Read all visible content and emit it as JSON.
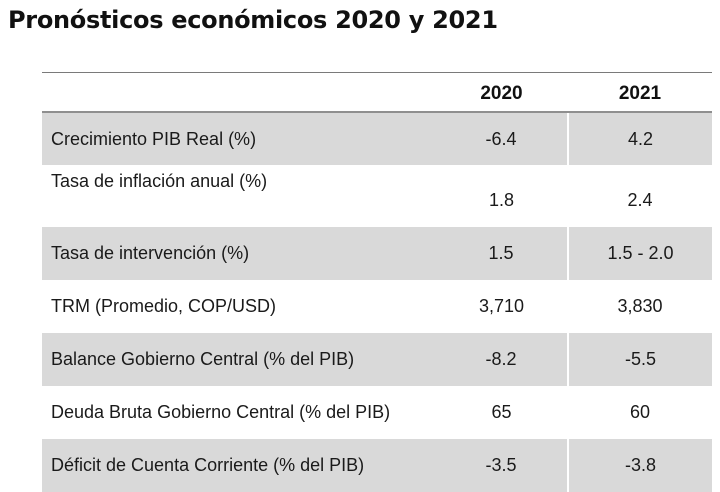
{
  "title": "Pronósticos económicos 2020 y 2021",
  "table": {
    "header": {
      "label": "",
      "col_2020": "2020",
      "col_2021": "2021"
    },
    "rows": [
      {
        "label": "Crecimiento PIB Real (%)",
        "v2020": "-6.4",
        "v2021": "4.2"
      },
      {
        "label": "Tasa de inflación anual (%)",
        "v2020": "1.8",
        "v2021": "2.4"
      },
      {
        "label": "Tasa de intervención (%)",
        "v2020": "1.5",
        "v2021": "1.5 - 2.0"
      },
      {
        "label": "TRM (Promedio, COP/USD)",
        "v2020": "3,710",
        "v2021": "3,830"
      },
      {
        "label": "Balance Gobierno Central (% del PIB)",
        "v2020": "-8.2",
        "v2021": "-5.5"
      },
      {
        "label": "Deuda Bruta Gobierno Central (% del PIB)",
        "v2020": "65",
        "v2021": "60"
      },
      {
        "label": "Déficit de Cuenta Corriente (% del PIB)",
        "v2020": "-3.5",
        "v2021": "-3.8"
      }
    ]
  },
  "colors": {
    "shaded_row": "#d9d9d9",
    "rule": "#8f8f8f",
    "text": "#1a1a1a"
  }
}
